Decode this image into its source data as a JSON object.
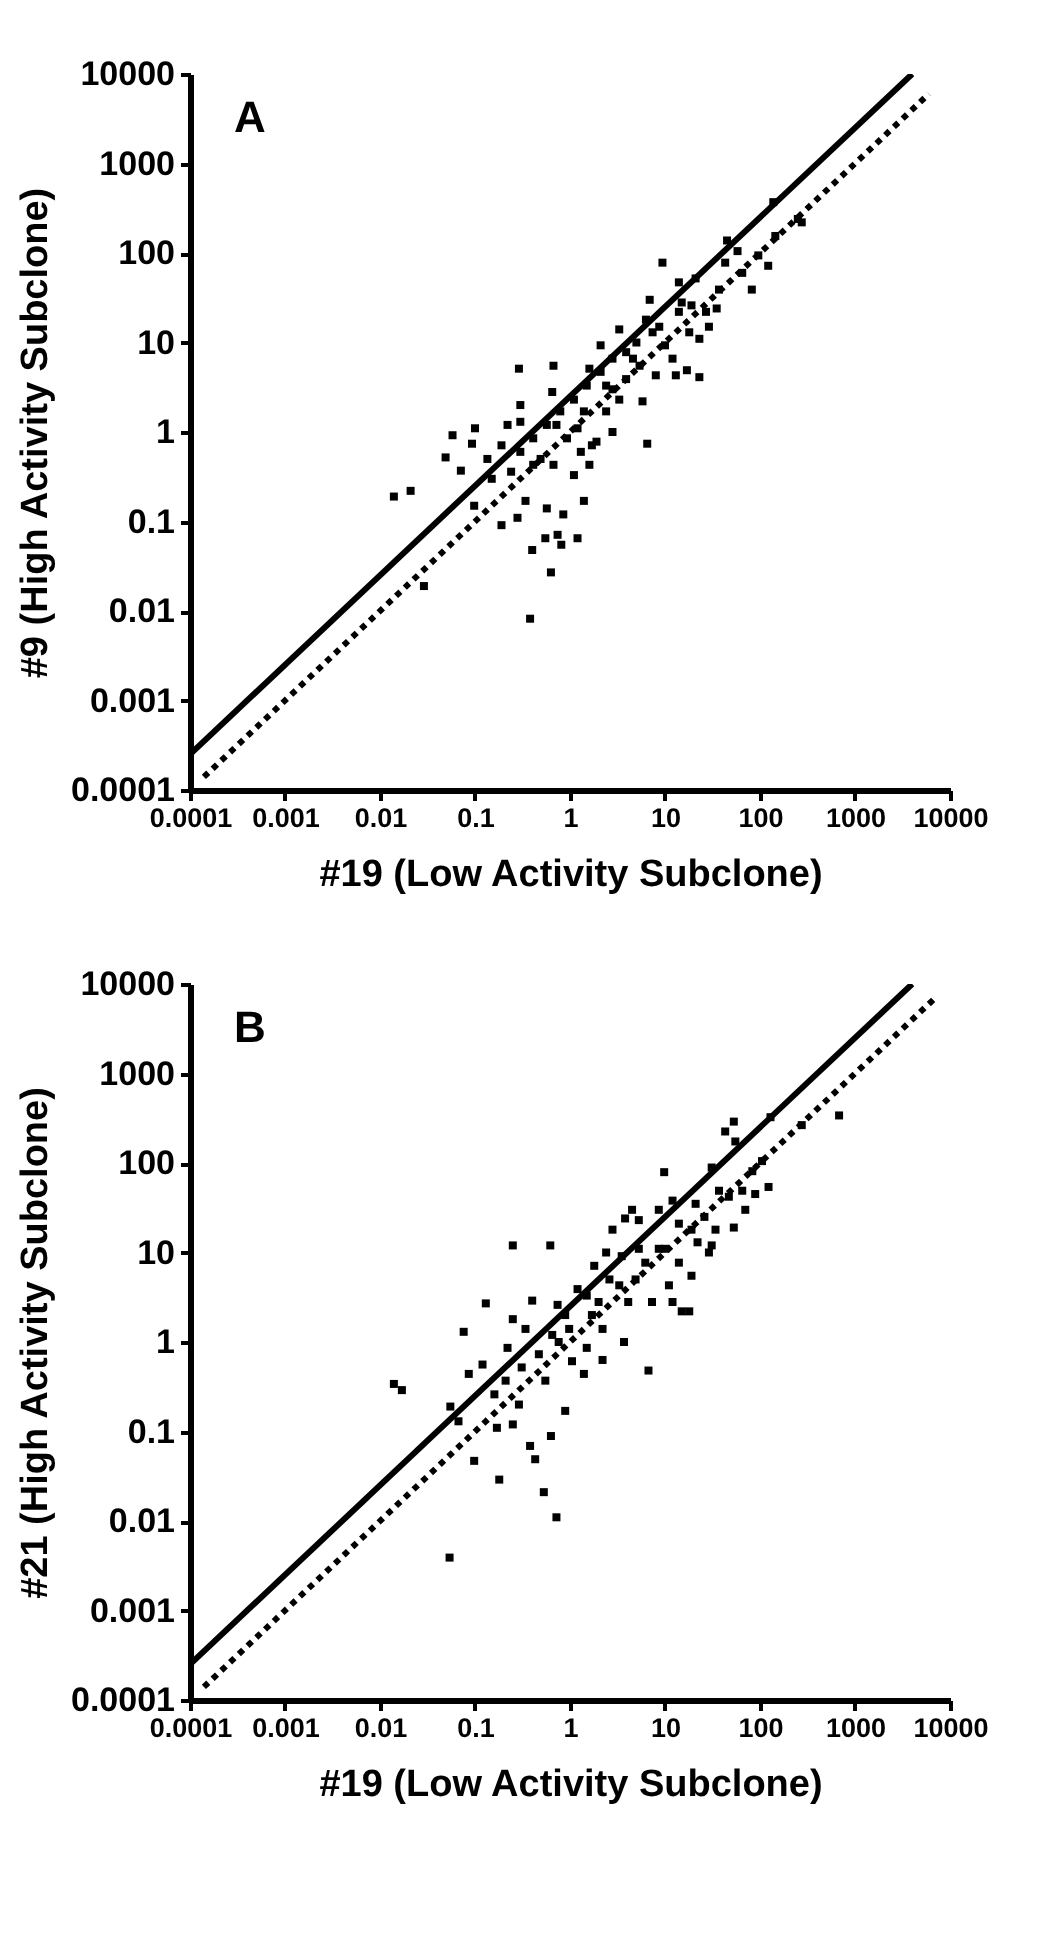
{
  "chart_data": [
    {
      "type": "scatter",
      "annotations": [
        "A"
      ],
      "xlabel": "#19 (Low Activity Subclone)",
      "ylabel": "#9 (High Activity Subclone)",
      "log": "xy",
      "marker": "square",
      "xlim": [
        0.0001,
        10000
      ],
      "ylim": [
        0.0001,
        10000
      ],
      "xticks": [
        0.0001,
        0.001,
        0.01,
        0.1,
        1,
        10,
        100,
        1000,
        10000
      ],
      "yticks": [
        0.0001,
        0.001,
        0.01,
        0.1,
        1,
        10,
        100,
        1000,
        10000
      ],
      "series": [
        {
          "color": "#000000",
          "x": [
            0.014,
            0.021,
            0.058,
            0.049,
            0.071,
            0.1,
            0.093,
            0.135,
            0.19,
            0.22,
            0.15,
            0.098,
            0.029,
            0.29,
            0.67,
            0.65,
            0.3,
            0.3,
            0.24,
            0.19,
            0.28,
            0.34,
            0.4,
            0.38,
            0.63,
            0.55,
            0.74,
            0.81,
            0.85,
            0.57,
            1.2,
            1.4,
            1.1,
            1.7,
            0.67,
            0.49,
            0.41,
            0.57,
            0.79,
            1.1,
            1.5,
            2.1,
            1.6,
            2.1,
            3.3,
            2.8,
            3.9,
            5.0,
            5.4,
            3.3,
            2.4,
            2.8,
            1.9,
            5.8,
            6.5,
            6.3,
            6.9,
            8.7,
            10,
            8.0,
            13,
            12,
            14,
            9.4,
            14,
            19,
            18,
            23,
            27,
            17,
            23,
            21,
            35,
            37,
            43,
            45,
            58,
            65,
            82,
            122,
            96,
            145,
            250,
            138,
            275,
            2.8,
            3.9,
            1.4,
            1.2,
            0.93,
            0.72,
            1.3,
            1.6,
            7.4,
            29,
            15,
            4.6,
            2.4,
            0.3,
            0.41
          ],
          "values": [
            0.19,
            0.22,
            0.92,
            0.52,
            0.37,
            1.1,
            0.74,
            0.5,
            0.71,
            1.2,
            0.3,
            0.15,
            0.019,
            5.1,
            5.5,
            2.8,
            2.0,
            1.3,
            0.36,
            0.091,
            0.11,
            0.17,
            0.048,
            0.0082,
            0.027,
            0.065,
            0.071,
            0.055,
            0.12,
            0.14,
            0.065,
            0.17,
            0.33,
            0.71,
            0.43,
            0.5,
            0.85,
            1.2,
            1.7,
            2.3,
            3.3,
            4.7,
            5.1,
            9.3,
            14,
            6.6,
            7.8,
            10,
            5.5,
            2.3,
            1.7,
            1.0,
            0.78,
            2.2,
            0.74,
            18,
            30,
            15,
            9.3,
            4.3,
            4.3,
            6.6,
            22,
            78,
            47,
            26,
            13,
            11,
            22,
            4.9,
            4.1,
            52,
            24,
            39,
            78,
            138,
            105,
            60,
            39,
            72,
            94,
            155,
            240,
            370,
            220,
            3.0,
            3.9,
            1.7,
            1.1,
            0.85,
            1.2,
            0.6,
            0.43,
            13,
            15,
            28,
            6.6,
            3.3,
            0.6,
            0.43
          ]
        },
        {
          "type": "line",
          "marker": "none",
          "color": "#000000",
          "line_style": "solid",
          "x": [
            0.0001,
            4000
          ],
          "values": [
            0.00025,
            10000
          ]
        },
        {
          "type": "line",
          "marker": "none",
          "color": "#000000",
          "line_style": "dotted",
          "x": [
            0.00014,
            6000
          ],
          "values": [
            0.00014,
            6000
          ]
        }
      ]
    },
    {
      "type": "scatter",
      "annotations": [
        "B"
      ],
      "xlabel": "#19 (Low Activity Subclone)",
      "ylabel": "#21 (High Activity Subclone)",
      "log": "xy",
      "marker": "square",
      "xlim": [
        0.0001,
        10000
      ],
      "ylim": [
        0.0001,
        10000
      ],
      "xticks": [
        0.0001,
        0.001,
        0.01,
        0.1,
        1,
        10,
        100,
        1000,
        10000
      ],
      "yticks": [
        0.0001,
        0.001,
        0.01,
        0.1,
        1,
        10,
        100,
        1000,
        10000
      ],
      "series": [
        {
          "color": "#000000",
          "x": [
            0.014,
            0.017,
            0.054,
            0.055,
            0.067,
            0.076,
            0.086,
            0.098,
            0.13,
            0.12,
            0.18,
            0.17,
            0.25,
            0.25,
            0.22,
            0.29,
            0.25,
            0.38,
            0.43,
            0.53,
            0.72,
            0.63,
            0.89,
            0.62,
            0.4,
            0.34,
            0.47,
            0.55,
            0.74,
            0.76,
            0.98,
            1.05,
            1.5,
            2.2,
            1.4,
            1.2,
            1.8,
            2.0,
            1.7,
            2.8,
            3.5,
            3.7,
            3.8,
            5.3,
            4.9,
            3.3,
            6.7,
            6.2,
            7.3,
            8.6,
            9.8,
            10,
            11,
            12,
            14,
            15,
            18,
            19,
            19,
            14,
            12,
            21,
            26,
            31,
            29,
            34,
            31,
            37,
            43,
            53,
            55,
            47,
            53,
            65,
            83,
            89,
            105,
            123,
            129,
            275,
            680,
            4.5,
            5.3,
            2.4,
            2.6,
            1.5,
            0.89,
            0.65,
            0.31,
            0.16,
            0.21,
            4.1,
            8.6,
            22,
            70,
            2.2
          ],
          "values": [
            0.34,
            0.29,
            0.0039,
            0.19,
            0.13,
            1.3,
            0.44,
            0.047,
            2.7,
            0.56,
            0.029,
            0.11,
            12,
            1.8,
            0.86,
            0.2,
            0.12,
            0.069,
            0.049,
            0.021,
            0.011,
            0.089,
            0.17,
            12,
            2.9,
            1.4,
            0.73,
            0.37,
            2.6,
            1.0,
            1.4,
            0.61,
            0.86,
            0.63,
            0.44,
            3.9,
            7.1,
            2.8,
            2.0,
            18,
            9.1,
            1.0,
            24,
            11,
            5.0,
            4.3,
            0.48,
            7.7,
            2.8,
            30,
            79,
            11,
            4.3,
            2.8,
            7.7,
            2.2,
            2.2,
            5.5,
            18,
            21,
            38,
            35,
            25,
            12,
            10,
            18,
            89,
            49,
            225,
            290,
            174,
            42,
            19,
            49,
            81,
            45,
            105,
            54,
            325,
            265,
            340,
            30,
            23,
            10,
            5.0,
            3.3,
            2.0,
            1.2,
            0.52,
            0.26,
            0.37,
            2.8,
            11,
            13,
            30,
            1.4
          ]
        },
        {
          "type": "line",
          "marker": "none",
          "color": "#000000",
          "line_style": "solid",
          "x": [
            0.0001,
            4000
          ],
          "values": [
            0.00025,
            10000
          ]
        },
        {
          "type": "line",
          "marker": "none",
          "color": "#000000",
          "line_style": "dotted",
          "x": [
            0.00014,
            7000
          ],
          "values": [
            0.00014,
            7000
          ]
        }
      ]
    }
  ]
}
